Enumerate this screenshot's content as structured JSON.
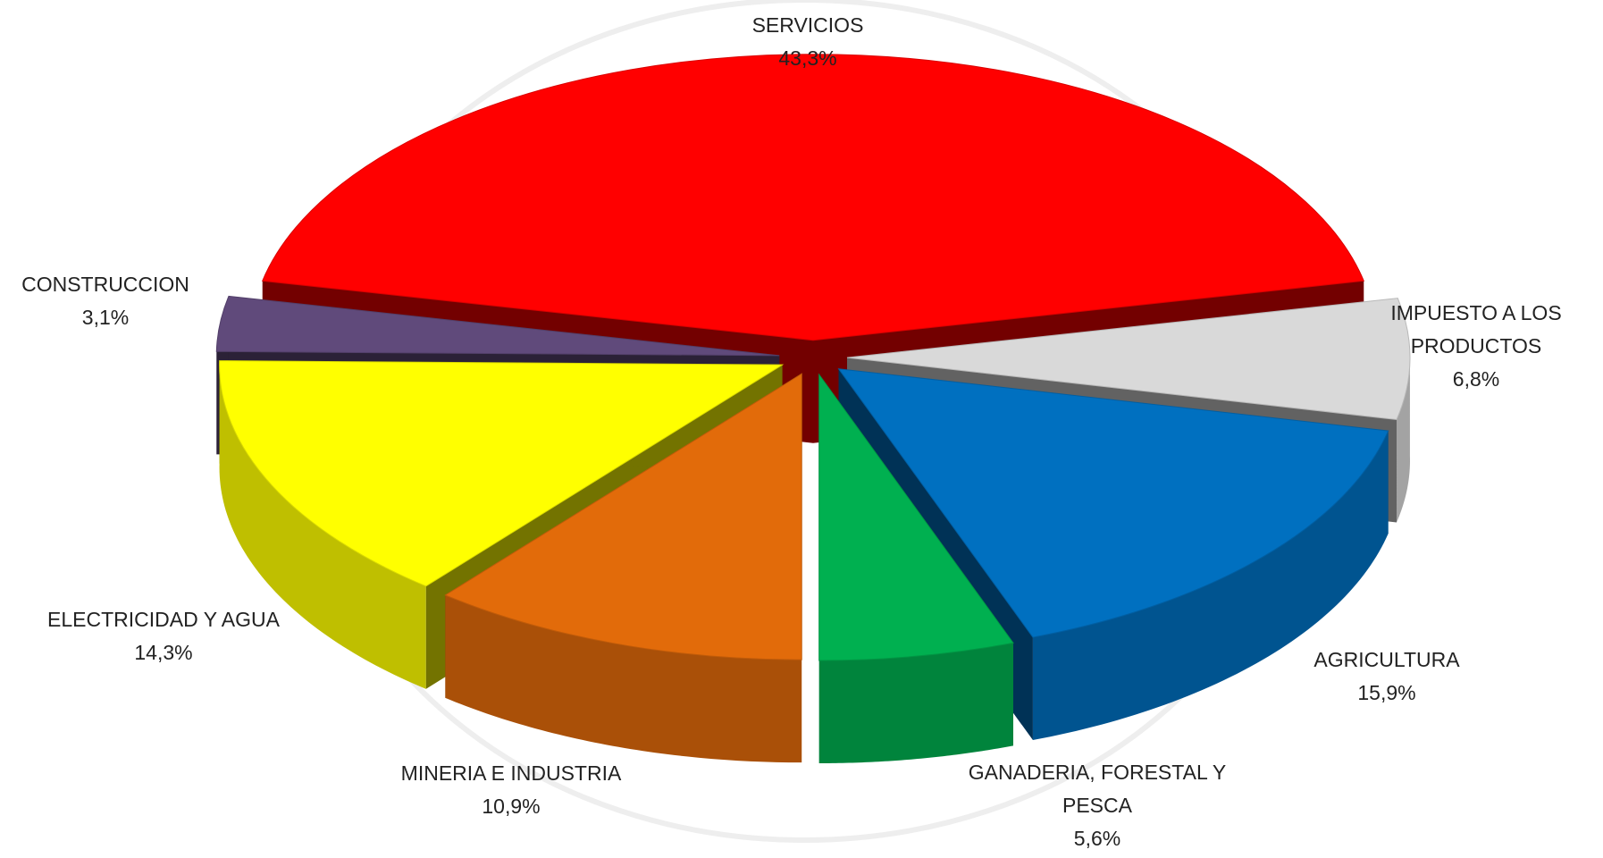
{
  "chart_data": {
    "type": "pie3d",
    "categories": [
      "SERVICIOS",
      "IMPUESTO A LOS PRODUCTOS",
      "AGRICULTURA",
      "GANADERIA, FORESTAL Y PESCA",
      "MINERIA E INDUSTRIA",
      "ELECTRICIDAD Y AGUA",
      "CONSTRUCCION"
    ],
    "values": [
      43.3,
      6.8,
      15.9,
      5.6,
      10.9,
      14.3,
      3.1
    ],
    "value_labels": [
      "43,3%",
      "6,8%",
      "15,9%",
      "5,6%",
      "10,9%",
      "14,3%",
      "3,1%"
    ],
    "colors": [
      "#ff0000",
      "#d9d9d9",
      "#0070c0",
      "#00b050",
      "#e26b0a",
      "#ffff00",
      "#604a7b"
    ]
  }
}
